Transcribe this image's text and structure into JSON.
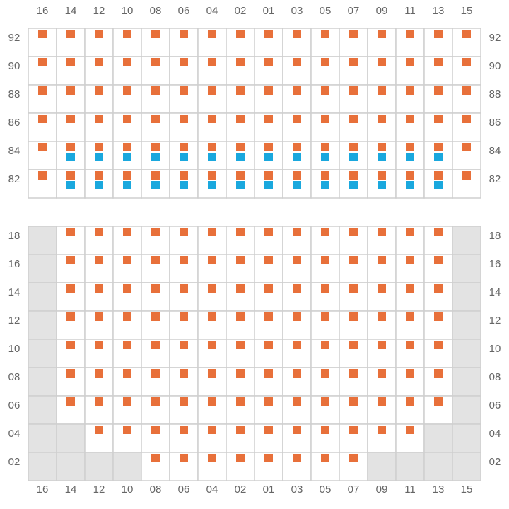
{
  "columns": [
    "16",
    "14",
    "12",
    "10",
    "08",
    "06",
    "04",
    "02",
    "01",
    "03",
    "05",
    "07",
    "09",
    "11",
    "13",
    "15"
  ],
  "sections": [
    {
      "rows": [
        "92",
        "90",
        "88",
        "86",
        "84",
        "82"
      ]
    },
    {
      "rows": [
        "18",
        "16",
        "14",
        "12",
        "10",
        "08",
        "06",
        "04",
        "02"
      ]
    }
  ]
}
